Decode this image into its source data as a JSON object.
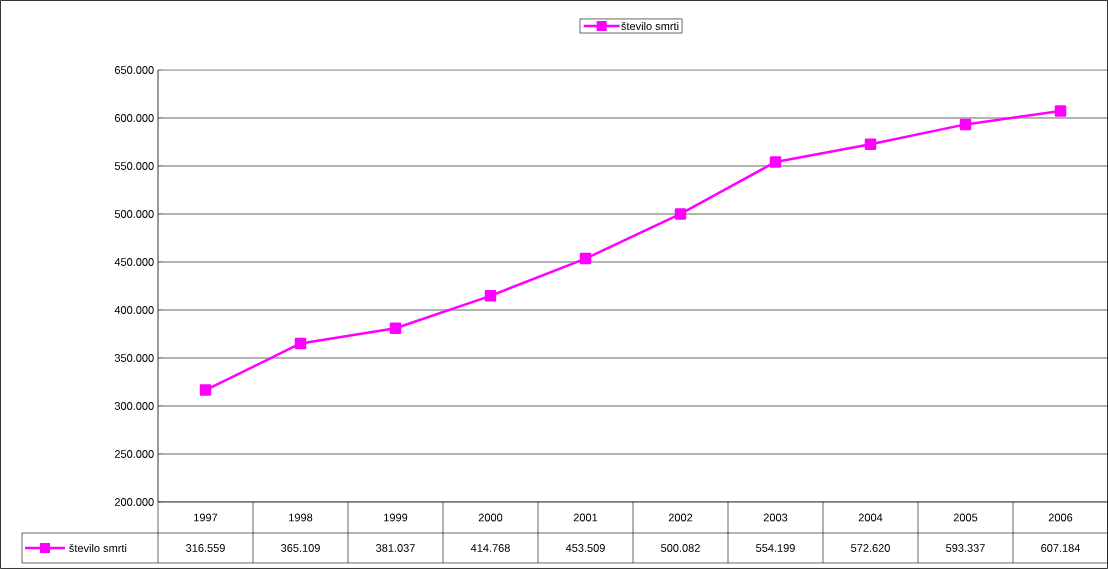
{
  "chart_data": {
    "type": "line",
    "categories": [
      "1997",
      "1998",
      "1999",
      "2000",
      "2001",
      "2002",
      "2003",
      "2004",
      "2005",
      "2006"
    ],
    "series": [
      {
        "name": "število smrti",
        "color": "#ff00ff",
        "values": [
          316559,
          365109,
          381037,
          414768,
          453509,
          500082,
          554199,
          572620,
          593337,
          607184
        ]
      }
    ],
    "value_labels": [
      "316.559",
      "365.109",
      "381.037",
      "414.768",
      "453.509",
      "500.082",
      "554.199",
      "572.620",
      "593.337",
      "607.184"
    ],
    "ylim": [
      200000,
      650000
    ],
    "yticks": [
      {
        "value": 200000,
        "label": "200.000"
      },
      {
        "value": 250000,
        "label": "250.000"
      },
      {
        "value": 300000,
        "label": "300.000"
      },
      {
        "value": 350000,
        "label": "350.000"
      },
      {
        "value": 400000,
        "label": "400.000"
      },
      {
        "value": 450000,
        "label": "450.000"
      },
      {
        "value": 500000,
        "label": "500.000"
      },
      {
        "value": 550000,
        "label": "550.000"
      },
      {
        "value": 600000,
        "label": "600.000"
      },
      {
        "value": 650000,
        "label": "650.000"
      }
    ],
    "grid": "y",
    "legend": "top",
    "marker": "square",
    "line_style": "solid"
  }
}
